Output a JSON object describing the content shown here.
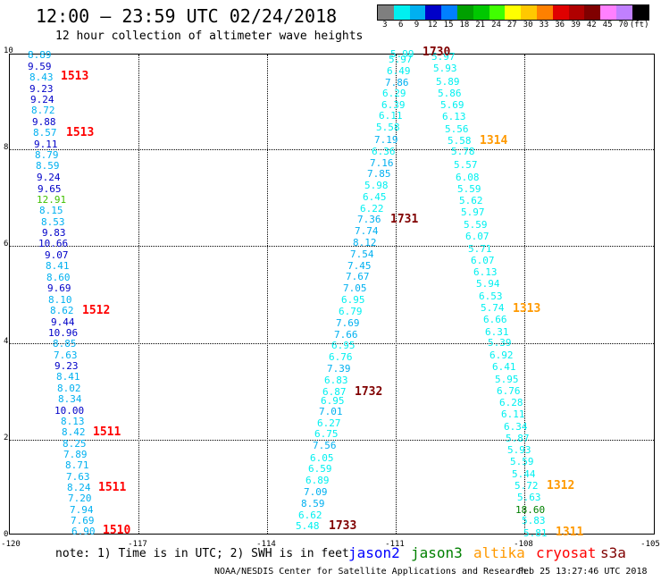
{
  "title": "12:00 – 23:59 UTC 02/24/2018",
  "subtitle": "12 hour collection of altimeter wave heights",
  "colorbar": {
    "colors": [
      "#7f7f7f",
      "#00f0f0",
      "#00b0f0",
      "#0000c8",
      "#007fff",
      "#00a000",
      "#00c800",
      "#40ff00",
      "#ffff00",
      "#ffc800",
      "#ff8000",
      "#e00000",
      "#b00000",
      "#800000",
      "#ff80ff",
      "#c080ff",
      "#000000"
    ],
    "labels": [
      "3",
      "6",
      "9",
      "12",
      "15",
      "18",
      "21",
      "24",
      "27",
      "30",
      "33",
      "36",
      "39",
      "42",
      "45",
      "70",
      "(ft)"
    ]
  },
  "axes": {
    "y_ticks": [
      "10",
      "8",
      "6",
      "4",
      "2",
      "0"
    ],
    "x_ticks": [
      "-120",
      "-117",
      "-114",
      "-111",
      "-108",
      "-105"
    ]
  },
  "tracks": [
    {
      "id": "track1",
      "color_key": "cryosat",
      "labels": [
        {
          "text": "1513",
          "row": 86,
          "col": 68
        },
        {
          "text": "1513",
          "row": 149,
          "col": 74
        },
        {
          "text": "1512",
          "row": 348,
          "col": 92
        },
        {
          "text": "1511",
          "row": 484,
          "col": 104
        },
        {
          "text": "1511",
          "row": 546,
          "col": 110
        },
        {
          "text": "1510",
          "row": 594,
          "col": 115
        }
      ]
    },
    {
      "id": "track2",
      "color_key": "s3a",
      "labels": [
        {
          "text": "1730",
          "row": 59,
          "col": 473
        },
        {
          "text": "1731",
          "row": 246,
          "col": 437
        },
        {
          "text": "1732",
          "row": 439,
          "col": 397
        },
        {
          "text": "1733",
          "row": 589,
          "col": 368
        }
      ]
    },
    {
      "id": "track3",
      "color_key": "altika",
      "labels": [
        {
          "text": "1314",
          "row": 158,
          "col": 537
        },
        {
          "text": "1313",
          "row": 346,
          "col": 574
        },
        {
          "text": "1312",
          "row": 544,
          "col": 612
        },
        {
          "text": "1311",
          "row": 596,
          "col": 622
        }
      ]
    }
  ],
  "points_col1": [
    [
      "8.89",
      "#00b0f0",
      31,
      62
    ],
    [
      "9.59",
      "#0000c8",
      31,
      75
    ],
    [
      "8.43",
      "#00b0f0",
      33,
      87
    ],
    [
      "9.23",
      "#0000c8",
      33,
      100
    ],
    [
      "9.24",
      "#0000c8",
      34,
      112
    ],
    [
      "8.72",
      "#00b0f0",
      35,
      124
    ],
    [
      "9.88",
      "#0000c8",
      36,
      137
    ],
    [
      "8.57",
      "#00b0f0",
      37,
      149
    ],
    [
      "9.11",
      "#0000c8",
      38,
      162
    ],
    [
      "8.79",
      "#00b0f0",
      39,
      174
    ],
    [
      "8.59",
      "#00b0f0",
      40,
      186
    ],
    [
      "9.24",
      "#0000c8",
      41,
      199
    ],
    [
      "9.65",
      "#0000c8",
      42,
      212
    ],
    [
      "12.91",
      "#40c000",
      41,
      224
    ],
    [
      "8.15",
      "#00b0f0",
      44,
      236
    ],
    [
      "8.53",
      "#00b0f0",
      46,
      249
    ],
    [
      "9.83",
      "#0000c8",
      47,
      261
    ],
    [
      "10.66",
      "#0000c8",
      43,
      273
    ],
    [
      "9.07",
      "#0000c8",
      50,
      286
    ],
    [
      "8.41",
      "#00b0f0",
      51,
      298
    ],
    [
      "8.60",
      "#00b0f0",
      52,
      311
    ],
    [
      "9.69",
      "#0000c8",
      53,
      323
    ],
    [
      "8.10",
      "#00b0f0",
      54,
      336
    ],
    [
      "8.62",
      "#00b0f0",
      56,
      348
    ],
    [
      "9.44",
      "#0000c8",
      57,
      361
    ],
    [
      "10.96",
      "#0000c8",
      54,
      373
    ],
    [
      "8.85",
      "#00b0f0",
      59,
      385
    ],
    [
      "7.63",
      "#00b0f0",
      60,
      398
    ],
    [
      "9.23",
      "#0000c8",
      61,
      410
    ],
    [
      "8.41",
      "#00b0f0",
      63,
      422
    ],
    [
      "8.02",
      "#00b0f0",
      64,
      435
    ],
    [
      "8.34",
      "#00b0f0",
      65,
      447
    ],
    [
      "10.00",
      "#0000c8",
      61,
      460
    ],
    [
      "8.13",
      "#00b0f0",
      68,
      472
    ],
    [
      "8.42",
      "#00b0f0",
      69,
      484
    ],
    [
      "8.25",
      "#00b0f0",
      70,
      497
    ],
    [
      "7.89",
      "#00b0f0",
      71,
      509
    ],
    [
      "8.71",
      "#00b0f0",
      73,
      521
    ],
    [
      "7.63",
      "#00b0f0",
      74,
      534
    ],
    [
      "8.24",
      "#00b0f0",
      75,
      546
    ],
    [
      "7.20",
      "#00b0f0",
      76,
      558
    ],
    [
      "7.94",
      "#00b0f0",
      78,
      571
    ],
    [
      "7.69",
      "#00b0f0",
      79,
      583
    ],
    [
      "6.90",
      "#00b0f0",
      80,
      595
    ]
  ],
  "points_col2": [
    [
      "5.99",
      "#00f0f0",
      437,
      61
    ],
    [
      "5.97",
      "#00f0f0",
      435,
      67
    ],
    [
      "6.49",
      "#00f0f0",
      433,
      80
    ],
    [
      "7.86",
      "#00b0f0",
      431,
      93
    ],
    [
      "6.29",
      "#00f0f0",
      428,
      105
    ],
    [
      "6.39",
      "#00f0f0",
      427,
      118
    ],
    [
      "6.11",
      "#00f0f0",
      424,
      130
    ],
    [
      "5.58",
      "#00f0f0",
      421,
      143
    ],
    [
      "7.19",
      "#00b0f0",
      419,
      157
    ],
    [
      "6.36",
      "#00f0f0",
      416,
      170
    ],
    [
      "7.16",
      "#00b0f0",
      414,
      183
    ],
    [
      "7.85",
      "#00b0f0",
      411,
      195
    ],
    [
      "5.98",
      "#00f0f0",
      408,
      208
    ],
    [
      "6.45",
      "#00f0f0",
      406,
      221
    ],
    [
      "6.22",
      "#00f0f0",
      403,
      234
    ],
    [
      "7.36",
      "#00b0f0",
      400,
      246
    ],
    [
      "7.74",
      "#00b0f0",
      397,
      259
    ],
    [
      "8.12",
      "#00b0f0",
      395,
      272
    ],
    [
      "7.54",
      "#00b0f0",
      392,
      285
    ],
    [
      "7.45",
      "#00b0f0",
      389,
      298
    ],
    [
      "7.67",
      "#00b0f0",
      387,
      310
    ],
    [
      "7.05",
      "#00b0f0",
      384,
      323
    ],
    [
      "6.95",
      "#00f0f0",
      382,
      336
    ],
    [
      "6.79",
      "#00f0f0",
      379,
      349
    ],
    [
      "7.69",
      "#00b0f0",
      376,
      362
    ],
    [
      "7.66",
      "#00b0f0",
      374,
      375
    ],
    [
      "6.95",
      "#00f0f0",
      371,
      387
    ],
    [
      "6.76",
      "#00f0f0",
      368,
      400
    ],
    [
      "7.39",
      "#00b0f0",
      366,
      413
    ],
    [
      "6.83",
      "#00f0f0",
      363,
      426
    ],
    [
      "6.87",
      "#00f0f0",
      361,
      439
    ],
    [
      "6.95",
      "#00f0f0",
      359,
      449
    ],
    [
      "7.01",
      "#00b0f0",
      357,
      461
    ],
    [
      "6.27",
      "#00f0f0",
      355,
      474
    ],
    [
      "6.75",
      "#00f0f0",
      352,
      486
    ],
    [
      "7.56",
      "#00b0f0",
      350,
      499
    ],
    [
      "6.05",
      "#00f0f0",
      347,
      513
    ],
    [
      "6.59",
      "#00f0f0",
      345,
      525
    ],
    [
      "6.89",
      "#00f0f0",
      342,
      538
    ],
    [
      "7.09",
      "#00b0f0",
      340,
      551
    ],
    [
      "8.59",
      "#00b0f0",
      337,
      564
    ],
    [
      "6.62",
      "#00f0f0",
      334,
      577
    ],
    [
      "5.48",
      "#00f0f0",
      331,
      589
    ]
  ],
  "points_col3": [
    [
      "5.97",
      "#00f0f0",
      483,
      64
    ],
    [
      "5.93",
      "#00f0f0",
      485,
      77
    ],
    [
      "5.89",
      "#00f0f0",
      488,
      92
    ],
    [
      "5.86",
      "#00f0f0",
      490,
      105
    ],
    [
      "5.69",
      "#00f0f0",
      493,
      118
    ],
    [
      "6.13",
      "#00f0f0",
      495,
      131
    ],
    [
      "5.56",
      "#00f0f0",
      498,
      145
    ],
    [
      "5.58",
      "#00f0f0",
      501,
      158
    ],
    [
      "5.78",
      "#00f0f0",
      505,
      170
    ],
    [
      "5.57",
      "#00f0f0",
      508,
      185
    ],
    [
      "6.08",
      "#00f0f0",
      510,
      199
    ],
    [
      "5.59",
      "#00f0f0",
      512,
      212
    ],
    [
      "5.62",
      "#00f0f0",
      514,
      225
    ],
    [
      "5.97",
      "#00f0f0",
      516,
      238
    ],
    [
      "5.59",
      "#00f0f0",
      519,
      252
    ],
    [
      "6.07",
      "#00f0f0",
      521,
      265
    ],
    [
      "5.71",
      "#00f0f0",
      524,
      279
    ],
    [
      "6.07",
      "#00f0f0",
      527,
      292
    ],
    [
      "6.13",
      "#00f0f0",
      530,
      305
    ],
    [
      "5.94",
      "#00f0f0",
      533,
      318
    ],
    [
      "6.53",
      "#00f0f0",
      536,
      332
    ],
    [
      "5.74",
      "#00f0f0",
      538,
      345
    ],
    [
      "6.66",
      "#00f0f0",
      541,
      358
    ],
    [
      "6.31",
      "#00f0f0",
      543,
      372
    ],
    [
      "5.39",
      "#00f0f0",
      546,
      384
    ],
    [
      "6.92",
      "#00f0f0",
      548,
      398
    ],
    [
      "6.41",
      "#00f0f0",
      551,
      411
    ],
    [
      "5.95",
      "#00f0f0",
      554,
      425
    ],
    [
      "6.76",
      "#00f0f0",
      556,
      438
    ],
    [
      "6.28",
      "#00f0f0",
      559,
      451
    ],
    [
      "6.11",
      "#00f0f0",
      561,
      464
    ],
    [
      "6.34",
      "#00f0f0",
      564,
      478
    ],
    [
      "5.87",
      "#00f0f0",
      566,
      491
    ],
    [
      "5.93",
      "#00f0f0",
      568,
      504
    ],
    [
      "5.59",
      "#00f0f0",
      571,
      517
    ],
    [
      "5.44",
      "#00f0f0",
      573,
      531
    ],
    [
      "5.72",
      "#00f0f0",
      576,
      544
    ],
    [
      "5.63",
      "#00f0f0",
      579,
      557
    ],
    [
      "18.60",
      "#008000",
      577,
      571
    ],
    [
      "5.83",
      "#00f0f0",
      584,
      583
    ],
    [
      "5.81",
      "#00f0f0",
      586,
      597
    ]
  ],
  "note": "note: 1) Time is in UTC; 2) SWH is in feet",
  "legend": [
    {
      "name": "jason2",
      "color": "#0000ff",
      "col": 390
    },
    {
      "name": "jason3",
      "color": "#008000",
      "col": 460
    },
    {
      "name": "altika",
      "color": "#ff9900",
      "col": 530
    },
    {
      "name": "cryosat",
      "color": "#ff0000",
      "col": 600
    },
    {
      "name": "s3a",
      "color": "#800000",
      "col": 672
    }
  ],
  "track_colors": {
    "cryosat": "#ff0000",
    "s3a": "#800000",
    "altika": "#ff9900"
  },
  "credit": "NOAA/NESDIS Center for Satellite Applications and Research",
  "credit_time": "Feb 25 13:27:46 UTC 2018"
}
